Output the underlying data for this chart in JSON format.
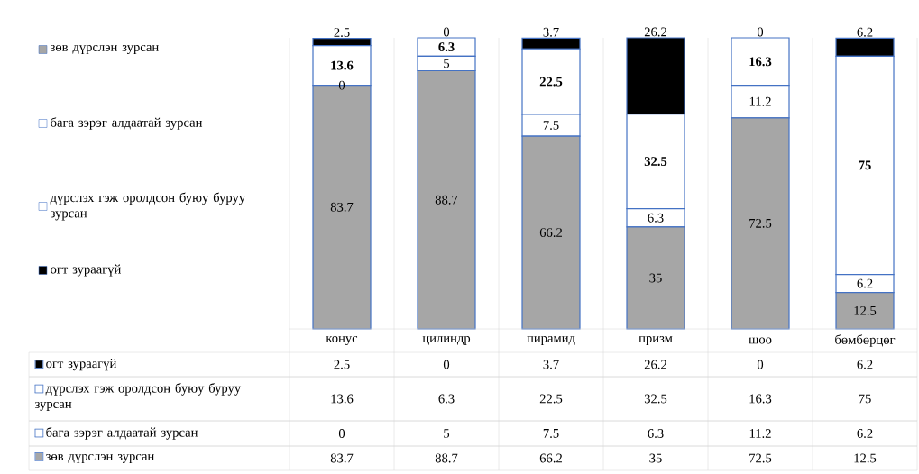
{
  "chart_data": {
    "type": "bar",
    "stacked": true,
    "data_labels": true,
    "legend": "left",
    "categories": [
      "конус",
      "цилиндр",
      "пирамид",
      "призм",
      "шоо",
      "бөмбөрцөг"
    ],
    "series": [
      {
        "name": "зөв дүрслэн зурсан",
        "color": "#a6a6a6",
        "values": [
          83.7,
          88.7,
          66.2,
          35,
          72.5,
          12.5
        ],
        "value_labels": [
          "83.7",
          "88.7",
          "66.2",
          "35",
          "72.5",
          "12.5"
        ]
      },
      {
        "name": "бага зэрэг алдаатай зурсан",
        "color": "#ffffff",
        "values": [
          0,
          5,
          7.5,
          6.3,
          11.2,
          6.2
        ],
        "value_labels": [
          "0",
          "5",
          "7.5",
          "6.3",
          "11.2",
          "6.2"
        ]
      },
      {
        "name": "дүрслэх гэж оролдсон буюу буруу зурсан",
        "color": "#ffffff",
        "values": [
          13.6,
          6.3,
          22.5,
          32.5,
          16.3,
          75
        ],
        "value_labels": [
          "13.6",
          "6.3",
          "22.5",
          "32.5",
          "16.3",
          "75"
        ]
      },
      {
        "name": "огт зураагүй",
        "color": "#000000",
        "values": [
          2.5,
          0,
          3.7,
          26.2,
          0,
          6.2
        ],
        "value_labels": [
          "2.5",
          "0",
          "3.7",
          "26.2",
          "0",
          "6.2"
        ]
      }
    ]
  }
}
